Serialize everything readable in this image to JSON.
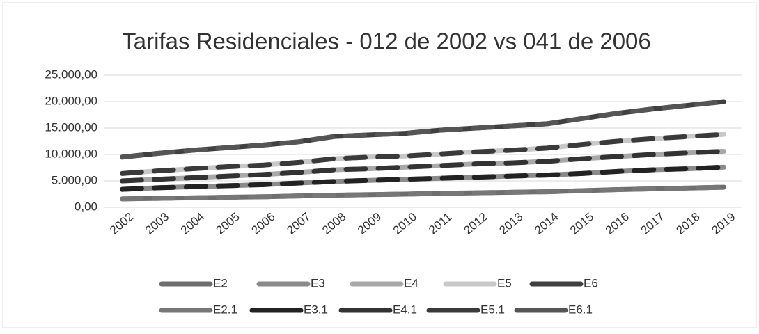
{
  "chart_data": {
    "type": "line",
    "title": "Tarifas Residenciales - 012 de 2002 vs 041 de 2006",
    "categories": [
      "2002",
      "2003",
      "2004",
      "2005",
      "2006",
      "2007",
      "2008",
      "2009",
      "2010",
      "2011",
      "2012",
      "2013",
      "2014",
      "2015",
      "2016",
      "2017",
      "2018",
      "2019"
    ],
    "series": [
      {
        "name": "E2",
        "color": "#6e6e6e",
        "line_style": "solid",
        "values": [
          1600,
          1700,
          1800,
          1900,
          2000,
          2150,
          2300,
          2400,
          2500,
          2650,
          2750,
          2850,
          2950,
          3150,
          3350,
          3500,
          3650,
          3800
        ]
      },
      {
        "name": "E3",
        "color": "#8a8a8a",
        "line_style": "solid",
        "values": [
          3400,
          3700,
          3900,
          4100,
          4300,
          4600,
          4900,
          5100,
          5300,
          5500,
          5700,
          5900,
          6100,
          6400,
          6800,
          7100,
          7300,
          7600
        ]
      },
      {
        "name": "E4",
        "color": "#a8a8a8",
        "line_style": "solid",
        "values": [
          5000,
          5300,
          5600,
          5900,
          6200,
          6600,
          7100,
          7300,
          7600,
          7900,
          8200,
          8400,
          8700,
          9200,
          9600,
          10000,
          10300,
          10600
        ]
      },
      {
        "name": "E5",
        "color": "#c8c8c8",
        "line_style": "solid",
        "values": [
          6400,
          6900,
          7300,
          7700,
          8000,
          8500,
          9200,
          9500,
          9700,
          10100,
          10500,
          10800,
          11200,
          11900,
          12500,
          13000,
          13400,
          13800
        ]
      },
      {
        "name": "E6",
        "color": "#404040",
        "line_style": "solid",
        "values": [
          9500,
          10200,
          10800,
          11300,
          11800,
          12400,
          13400,
          13700,
          14000,
          14600,
          15000,
          15400,
          15800,
          16800,
          17800,
          18600,
          19300,
          20000
        ]
      },
      {
        "name": "E2.1",
        "color": "#777777",
        "line_style": "dashed",
        "values": [
          1600,
          1700,
          1800,
          1900,
          2000,
          2150,
          2300,
          2400,
          2500,
          2650,
          2750,
          2850,
          2950,
          3150,
          3350,
          3500,
          3650,
          3800
        ]
      },
      {
        "name": "E3.1",
        "color": "#222222",
        "line_style": "dashed",
        "values": [
          3400,
          3700,
          3900,
          4100,
          4300,
          4600,
          4900,
          5100,
          5300,
          5500,
          5700,
          5900,
          6100,
          6400,
          6800,
          7100,
          7300,
          7600
        ]
      },
      {
        "name": "E4.1",
        "color": "#333333",
        "line_style": "dashed",
        "values": [
          5000,
          5300,
          5600,
          5900,
          6200,
          6600,
          7100,
          7300,
          7600,
          7900,
          8200,
          8400,
          8700,
          9200,
          9600,
          10000,
          10300,
          10600
        ]
      },
      {
        "name": "E5.1",
        "color": "#3a3a3a",
        "line_style": "dashed",
        "values": [
          6400,
          6900,
          7300,
          7700,
          8000,
          8500,
          9200,
          9500,
          9700,
          10100,
          10500,
          10800,
          11200,
          11900,
          12500,
          13000,
          13400,
          13800
        ]
      },
      {
        "name": "E6.1",
        "color": "#555555",
        "line_style": "dashed",
        "values": [
          9500,
          10200,
          10800,
          11300,
          11800,
          12400,
          13400,
          13700,
          14000,
          14600,
          15000,
          15400,
          15800,
          16800,
          17800,
          18600,
          19300,
          20000
        ]
      }
    ],
    "ylim": [
      0,
      25000
    ],
    "yticks": [
      {
        "value": 0,
        "label": "0,00"
      },
      {
        "value": 5000,
        "label": "5.000,00"
      },
      {
        "value": 10000,
        "label": "10.000,00"
      },
      {
        "value": 15000,
        "label": "15.000,00"
      },
      {
        "value": 20000,
        "label": "20.000,00"
      },
      {
        "value": 25000,
        "label": "25.000,00"
      }
    ],
    "grid": true
  }
}
